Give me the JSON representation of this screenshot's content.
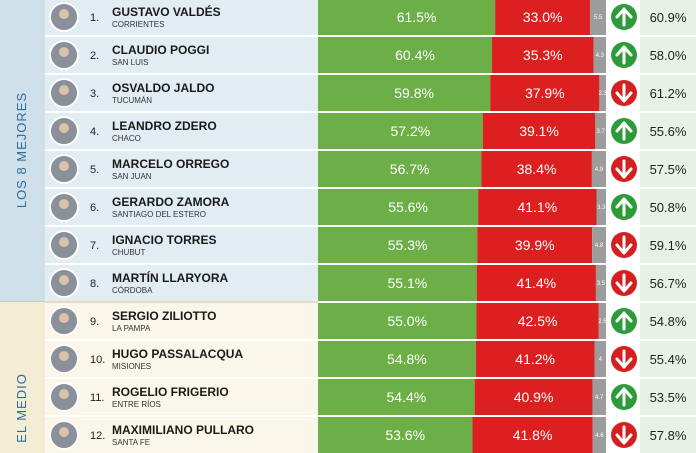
{
  "groups": [
    {
      "label": "LOS 8 MEJORES",
      "rows": [
        {
          "rank": "1.",
          "name": "GUSTAVO VALDÉS",
          "province": "CORRIENTES",
          "positive": {
            "value": 61.5,
            "label": "61.5%"
          },
          "negative": {
            "value": 33.0,
            "label": "33.0%"
          },
          "ns": 5.5,
          "trend": "up",
          "previous": "60.9%"
        },
        {
          "rank": "2.",
          "name": "CLAUDIO POGGI",
          "province": "SAN LUIS",
          "positive": {
            "value": 60.4,
            "label": "60.4%"
          },
          "negative": {
            "value": 35.3,
            "label": "35.3%"
          },
          "ns": 4.3,
          "trend": "up",
          "previous": "58.0%"
        },
        {
          "rank": "3.",
          "name": "OSVALDO JALDO",
          "province": "TUCUMÁN",
          "positive": {
            "value": 59.8,
            "label": "59.8%"
          },
          "negative": {
            "value": 37.9,
            "label": "37.9%"
          },
          "ns": 2.3,
          "trend": "down",
          "previous": "61.2%"
        },
        {
          "rank": "4.",
          "name": "LEANDRO ZDERO",
          "province": "CHACO",
          "positive": {
            "value": 57.2,
            "label": "57.2%"
          },
          "negative": {
            "value": 39.1,
            "label": "39.1%"
          },
          "ns": 3.7,
          "trend": "up",
          "previous": "55.6%"
        },
        {
          "rank": "5.",
          "name": "MARCELO ORREGO",
          "province": "SAN JUAN",
          "positive": {
            "value": 56.7,
            "label": "56.7%"
          },
          "negative": {
            "value": 38.4,
            "label": "38.4%"
          },
          "ns": 4.9,
          "trend": "down",
          "previous": "57.5%"
        },
        {
          "rank": "6.",
          "name": "GERARDO ZAMORA",
          "province": "SANTIAGO DEL ESTERO",
          "positive": {
            "value": 55.6,
            "label": "55.6%"
          },
          "negative": {
            "value": 41.1,
            "label": "41.1%"
          },
          "ns": 3.3,
          "trend": "up",
          "previous": "50.8%"
        },
        {
          "rank": "7.",
          "name": "IGNACIO TORRES",
          "province": "CHUBUT",
          "positive": {
            "value": 55.3,
            "label": "55.3%"
          },
          "negative": {
            "value": 39.9,
            "label": "39.9%"
          },
          "ns": 4.8,
          "trend": "down",
          "previous": "59.1%"
        },
        {
          "rank": "8.",
          "name": "MARTÍN LLARYORA",
          "province": "CÓRDOBA",
          "positive": {
            "value": 55.1,
            "label": "55.1%"
          },
          "negative": {
            "value": 41.4,
            "label": "41.4%"
          },
          "ns": 3.5,
          "trend": "down",
          "previous": "56.7%"
        }
      ]
    },
    {
      "label": "EL MEDIO",
      "rows": [
        {
          "rank": "9.",
          "name": "SERGIO ZILIOTTO",
          "province": "LA PAMPA",
          "positive": {
            "value": 55.0,
            "label": "55.0%"
          },
          "negative": {
            "value": 42.5,
            "label": "42.5%"
          },
          "ns": 2.5,
          "trend": "up",
          "previous": "54.8%"
        },
        {
          "rank": "10.",
          "name": "HUGO PASSALACQUA",
          "province": "MISIONES",
          "positive": {
            "value": 54.8,
            "label": "54.8%"
          },
          "negative": {
            "value": 41.2,
            "label": "41.2%"
          },
          "ns": 4.0,
          "trend": "down",
          "previous": "55.4%"
        },
        {
          "rank": "11.",
          "name": "ROGELIO FRIGERIO",
          "province": "ENTRE RÍOS",
          "positive": {
            "value": 54.4,
            "label": "54.4%"
          },
          "negative": {
            "value": 40.9,
            "label": "40.9%"
          },
          "ns": 4.7,
          "trend": "up",
          "previous": "53.5%"
        },
        {
          "rank": "12.",
          "name": "MAXIMILIANO PULLARO",
          "province": "SANTA FE",
          "positive": {
            "value": 53.6,
            "label": "53.6%"
          },
          "negative": {
            "value": 41.8,
            "label": "41.8%"
          },
          "ns": 4.6,
          "trend": "down",
          "previous": "57.8%"
        }
      ]
    }
  ]
}
